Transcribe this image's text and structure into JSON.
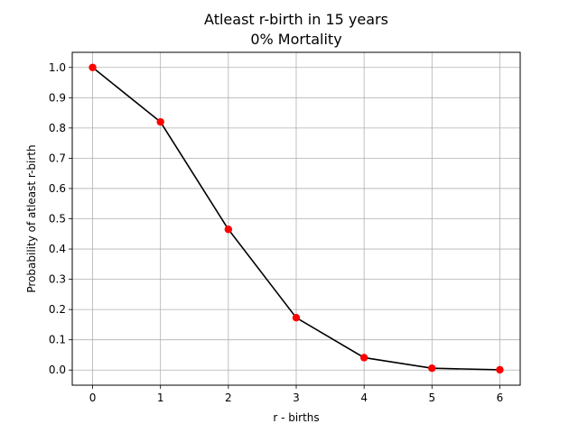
{
  "chart_data": {
    "type": "line",
    "title": "Atleast r-birth in 15 years",
    "subtitle": "0% Mortality",
    "xlabel": "r - births",
    "ylabel": "Probability of atleast r-birth",
    "x": [
      0,
      1,
      2,
      3,
      4,
      5,
      6
    ],
    "series": [
      {
        "values": [
          1.0,
          0.82,
          0.465,
          0.173,
          0.041,
          0.006,
          0.001
        ]
      }
    ],
    "xticks": [
      0,
      1,
      2,
      3,
      4,
      5,
      6
    ],
    "yticks": [
      0.0,
      0.1,
      0.2,
      0.3,
      0.4,
      0.5,
      0.6,
      0.7,
      0.8,
      0.9,
      1.0
    ],
    "xtick_labels": [
      "0",
      "1",
      "2",
      "3",
      "4",
      "5",
      "6"
    ],
    "ytick_labels": [
      "0.0",
      "0.1",
      "0.2",
      "0.3",
      "0.4",
      "0.5",
      "0.6",
      "0.7",
      "0.8",
      "0.9",
      "1.0"
    ],
    "xlim": [
      -0.3,
      6.3
    ],
    "ylim": [
      -0.05,
      1.05
    ],
    "grid": true,
    "line_color": "#000000",
    "marker_color": "#ff0000",
    "grid_color": "#b0b0b0"
  }
}
